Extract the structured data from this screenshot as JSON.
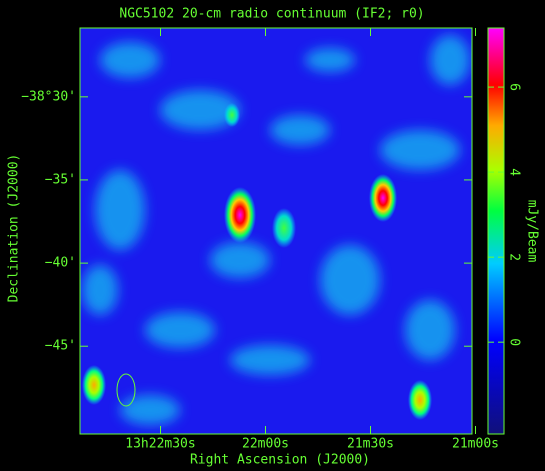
{
  "chart_data": {
    "type": "map",
    "title": "NGC5102  20-cm radio continuum (IF2; r0)",
    "xlabel": "Right Ascension (J2000)",
    "ylabel": "Declination (J2000)",
    "colorbar_label": "mJy/Beam",
    "xlim": [
      48173,
      48061
    ],
    "xticks": [
      {
        "value": 48150,
        "label": "13h22m30s"
      },
      {
        "value": 48120,
        "label": "22m00s"
      },
      {
        "value": 48090,
        "label": "21m30s"
      },
      {
        "value": 48060,
        "label": "21m00s"
      }
    ],
    "ylim": [
      -38.838,
      -38.431
    ],
    "yticks": [
      {
        "value": -38.5,
        "label": "−38°30'"
      },
      {
        "value": -38.5833,
        "label": "−35'"
      },
      {
        "value": -38.6667,
        "label": "−40'"
      },
      {
        "value": -38.75,
        "label": "−45'"
      }
    ],
    "clim": [
      -2.16,
      7.39
    ],
    "cticks": [
      0,
      2,
      4,
      6
    ]
  }
}
